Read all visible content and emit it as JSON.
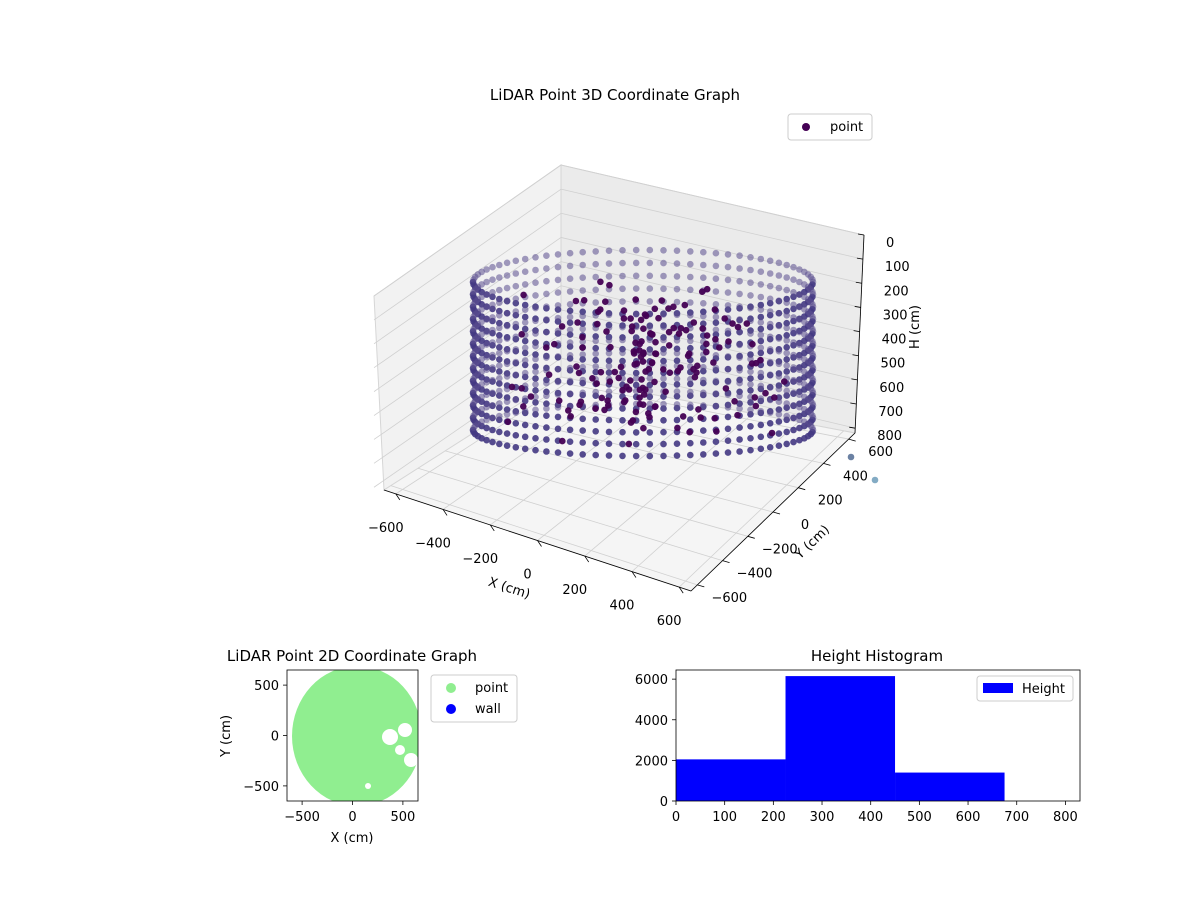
{
  "chart_data": [
    {
      "type": "scatter",
      "projection": "3d",
      "title": "LiDAR Point 3D Coordinate Graph",
      "xlabel": "X (cm)",
      "ylabel": "Y (cm)",
      "zlabel": "H (cm)",
      "x_ticks": [
        "−600",
        "−400",
        "−200",
        "0",
        "200",
        "400",
        "600"
      ],
      "y_ticks": [
        "−600",
        "−400",
        "−200",
        "0",
        "200",
        "400",
        "600"
      ],
      "z_ticks": [
        "0",
        "100",
        "200",
        "300",
        "400",
        "500",
        "600",
        "700",
        "800"
      ],
      "xlim": [
        -650,
        650
      ],
      "ylim": [
        -650,
        650
      ],
      "zlim": [
        0,
        820
      ],
      "z_inverted": true,
      "legend": {
        "placement": "upper-right",
        "entries": [
          "point"
        ]
      },
      "colormap": "viridis (dark purple → slate blue)",
      "series_colors": {
        "point": "#440154"
      },
      "grid": true,
      "description_points": "cylindrical ring of points, radius ~600 cm, heights 0–800 cm, plus interior clusters"
    },
    {
      "type": "scatter",
      "title": "LiDAR Point 2D Coordinate Graph",
      "xlabel": "X (cm)",
      "ylabel": "Y (cm)",
      "x_ticks": [
        "−500",
        "0",
        "500"
      ],
      "y_ticks": [
        "500",
        "0",
        "−500"
      ],
      "xlim": [
        -650,
        650
      ],
      "ylim": [
        -650,
        650
      ],
      "series": [
        {
          "name": "point",
          "color": "#90ee90"
        },
        {
          "name": "wall",
          "color": "#0000ff"
        }
      ],
      "legend": {
        "placement": "outside-right"
      }
    },
    {
      "type": "bar",
      "title": "Height Histogram",
      "x_ticks": [
        "0",
        "100",
        "200",
        "300",
        "400",
        "500",
        "600",
        "700",
        "800"
      ],
      "y_ticks": [
        "0",
        "2000",
        "4000",
        "6000"
      ],
      "xlim": [
        0,
        830
      ],
      "ylim": [
        0,
        6450
      ],
      "bins": [
        {
          "start": 0,
          "end": 225,
          "count": 2050
        },
        {
          "start": 225,
          "end": 450,
          "count": 6150
        },
        {
          "start": 450,
          "end": 675,
          "count": 1400
        },
        {
          "start": 675,
          "end": 900,
          "count": 0
        }
      ],
      "series": [
        {
          "name": "Height",
          "color": "#0000ff"
        }
      ],
      "legend": {
        "placement": "upper-right"
      }
    }
  ]
}
